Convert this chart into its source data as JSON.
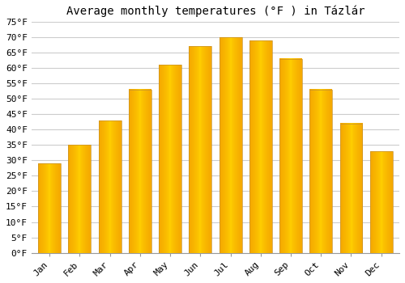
{
  "title": "Average monthly temperatures (°F ) in Tázlár",
  "months": [
    "Jan",
    "Feb",
    "Mar",
    "Apr",
    "May",
    "Jun",
    "Jul",
    "Aug",
    "Sep",
    "Oct",
    "Nov",
    "Dec"
  ],
  "values": [
    29,
    35,
    43,
    53,
    61,
    67,
    70,
    69,
    63,
    53,
    42,
    33
  ],
  "bar_color_center": "#FFD000",
  "bar_color_edge": "#F5A800",
  "bar_edge_color": "#C8922A",
  "ylim": [
    0,
    75
  ],
  "yticks": [
    0,
    5,
    10,
    15,
    20,
    25,
    30,
    35,
    40,
    45,
    50,
    55,
    60,
    65,
    70,
    75
  ],
  "ytick_labels": [
    "0°F",
    "5°F",
    "10°F",
    "15°F",
    "20°F",
    "25°F",
    "30°F",
    "35°F",
    "40°F",
    "45°F",
    "50°F",
    "55°F",
    "60°F",
    "65°F",
    "70°F",
    "75°F"
  ],
  "background_color": "#FFFFFF",
  "grid_color": "#CCCCCC",
  "title_fontsize": 10,
  "tick_fontsize": 8,
  "bar_width": 0.75,
  "font_family": "monospace"
}
